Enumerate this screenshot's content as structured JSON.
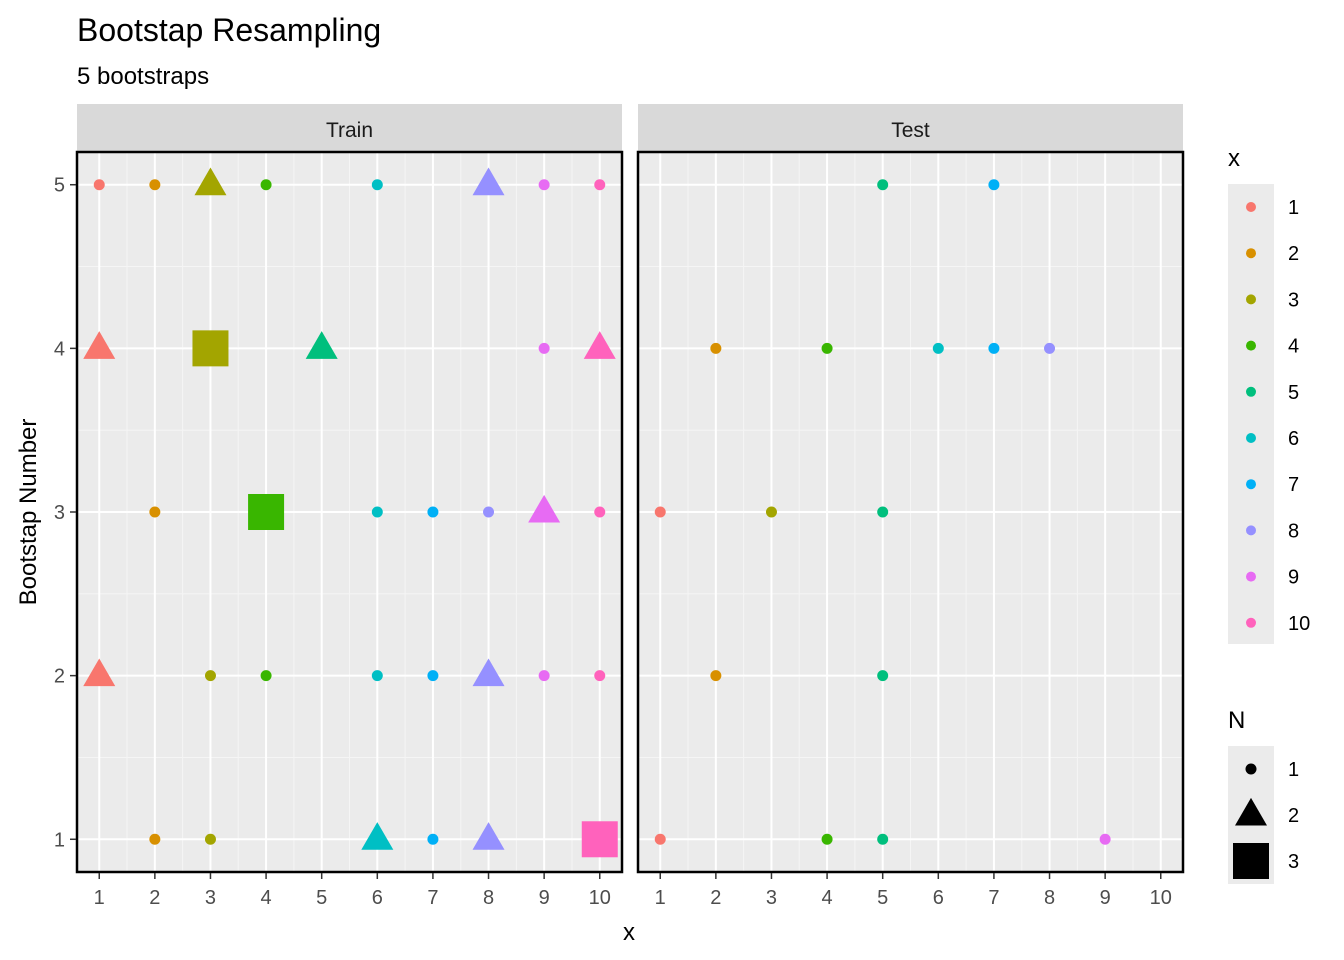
{
  "chart_data": {
    "type": "scatter",
    "title": "Bootstap Resampling",
    "subtitle": "5 bootstraps",
    "xlabel": "x",
    "ylabel": "Bootstap Number",
    "xlim": [
      0.6,
      10.4
    ],
    "ylim": [
      0.8,
      5.2
    ],
    "x_ticks": [
      "1",
      "2",
      "3",
      "4",
      "5",
      "6",
      "7",
      "8",
      "9",
      "10"
    ],
    "y_ticks": [
      "1",
      "2",
      "3",
      "4",
      "5"
    ],
    "grid": true,
    "legend_position": "right",
    "panels": [
      {
        "name": "Train",
        "points": [
          {
            "x": 1,
            "y": 5,
            "n": 1
          },
          {
            "x": 2,
            "y": 5,
            "n": 1
          },
          {
            "x": 3,
            "y": 5,
            "n": 2
          },
          {
            "x": 4,
            "y": 5,
            "n": 1
          },
          {
            "x": 6,
            "y": 5,
            "n": 1
          },
          {
            "x": 8,
            "y": 5,
            "n": 2
          },
          {
            "x": 9,
            "y": 5,
            "n": 1
          },
          {
            "x": 10,
            "y": 5,
            "n": 1
          },
          {
            "x": 1,
            "y": 4,
            "n": 2
          },
          {
            "x": 3,
            "y": 4,
            "n": 3
          },
          {
            "x": 5,
            "y": 4,
            "n": 2
          },
          {
            "x": 9,
            "y": 4,
            "n": 1
          },
          {
            "x": 10,
            "y": 4,
            "n": 2
          },
          {
            "x": 2,
            "y": 3,
            "n": 1
          },
          {
            "x": 4,
            "y": 3,
            "n": 3
          },
          {
            "x": 6,
            "y": 3,
            "n": 1
          },
          {
            "x": 7,
            "y": 3,
            "n": 1
          },
          {
            "x": 8,
            "y": 3,
            "n": 1
          },
          {
            "x": 9,
            "y": 3,
            "n": 2
          },
          {
            "x": 10,
            "y": 3,
            "n": 1
          },
          {
            "x": 1,
            "y": 2,
            "n": 2
          },
          {
            "x": 3,
            "y": 2,
            "n": 1
          },
          {
            "x": 4,
            "y": 2,
            "n": 1
          },
          {
            "x": 6,
            "y": 2,
            "n": 1
          },
          {
            "x": 7,
            "y": 2,
            "n": 1
          },
          {
            "x": 8,
            "y": 2,
            "n": 2
          },
          {
            "x": 9,
            "y": 2,
            "n": 1
          },
          {
            "x": 10,
            "y": 2,
            "n": 1
          },
          {
            "x": 2,
            "y": 1,
            "n": 1
          },
          {
            "x": 3,
            "y": 1,
            "n": 1
          },
          {
            "x": 6,
            "y": 1,
            "n": 2
          },
          {
            "x": 7,
            "y": 1,
            "n": 1
          },
          {
            "x": 8,
            "y": 1,
            "n": 2
          },
          {
            "x": 10,
            "y": 1,
            "n": 3
          }
        ]
      },
      {
        "name": "Test",
        "points": [
          {
            "x": 5,
            "y": 5,
            "n": 1
          },
          {
            "x": 7,
            "y": 5,
            "n": 1
          },
          {
            "x": 2,
            "y": 4,
            "n": 1
          },
          {
            "x": 4,
            "y": 4,
            "n": 1
          },
          {
            "x": 6,
            "y": 4,
            "n": 1
          },
          {
            "x": 7,
            "y": 4,
            "n": 1
          },
          {
            "x": 8,
            "y": 4,
            "n": 1
          },
          {
            "x": 1,
            "y": 3,
            "n": 1
          },
          {
            "x": 3,
            "y": 3,
            "n": 1
          },
          {
            "x": 5,
            "y": 3,
            "n": 1
          },
          {
            "x": 2,
            "y": 2,
            "n": 1
          },
          {
            "x": 5,
            "y": 2,
            "n": 1
          },
          {
            "x": 1,
            "y": 1,
            "n": 1
          },
          {
            "x": 4,
            "y": 1,
            "n": 1
          },
          {
            "x": 5,
            "y": 1,
            "n": 1
          },
          {
            "x": 9,
            "y": 1,
            "n": 1
          }
        ]
      }
    ],
    "color_legend": {
      "title": "x",
      "labels": [
        "1",
        "2",
        "3",
        "4",
        "5",
        "6",
        "7",
        "8",
        "9",
        "10"
      ],
      "colors": [
        "#F8766D",
        "#D89000",
        "#A3A500",
        "#39B600",
        "#00BF7D",
        "#00BFC4",
        "#00B0F6",
        "#9590FF",
        "#E76BF3",
        "#FF62BC"
      ]
    },
    "shape_legend": {
      "title": "N",
      "labels": [
        "1",
        "2",
        "3"
      ],
      "shapes": [
        "circle",
        "triangle",
        "square"
      ]
    }
  }
}
